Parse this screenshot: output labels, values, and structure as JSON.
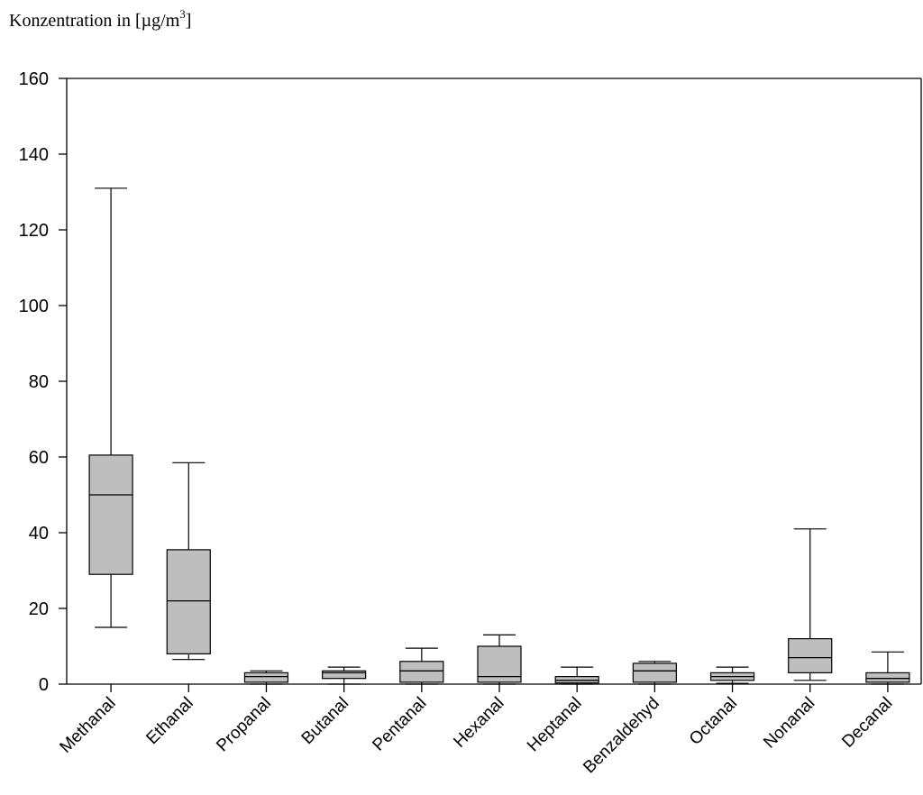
{
  "chart_data": {
    "type": "box",
    "ylabel": {
      "prefix": "Konzentration in [µg/m",
      "superscript": "3",
      "suffix": "]"
    },
    "ylim": [
      0,
      160
    ],
    "yticks": [
      0,
      20,
      40,
      60,
      80,
      100,
      120,
      140,
      160
    ],
    "grid": false,
    "colors": {
      "box_fill": "#bebebe",
      "stroke": "#000000"
    },
    "categories": [
      "Methanal",
      "Ethanal",
      "Propanal",
      "Butanal",
      "Pentanal",
      "Hexanal",
      "Heptanal",
      "Benzaldehyd",
      "Octanal",
      "Nonanal",
      "Decanal"
    ],
    "boxes": [
      {
        "whisker_low": 15,
        "q1": 29,
        "median": 50,
        "q3": 60.5,
        "whisker_high": 131
      },
      {
        "whisker_low": 6.5,
        "q1": 8,
        "median": 22,
        "q3": 35.5,
        "whisker_high": 58.5
      },
      {
        "whisker_low": 0,
        "q1": 0.5,
        "median": 2,
        "q3": 3,
        "whisker_high": 3.5
      },
      {
        "whisker_low": 0,
        "q1": 1.5,
        "median": 3,
        "q3": 3.5,
        "whisker_high": 4.5
      },
      {
        "whisker_low": 0,
        "q1": 0.5,
        "median": 3.5,
        "q3": 6,
        "whisker_high": 9.5
      },
      {
        "whisker_low": 0,
        "q1": 0.5,
        "median": 2,
        "q3": 10,
        "whisker_high": 13
      },
      {
        "whisker_low": 0,
        "q1": 0.3,
        "median": 1,
        "q3": 2,
        "whisker_high": 4.5
      },
      {
        "whisker_low": 0,
        "q1": 0.5,
        "median": 3.5,
        "q3": 5.5,
        "whisker_high": 6
      },
      {
        "whisker_low": 0.2,
        "q1": 1,
        "median": 2,
        "q3": 3,
        "whisker_high": 4.5
      },
      {
        "whisker_low": 1,
        "q1": 3,
        "median": 7,
        "q3": 12,
        "whisker_high": 41
      },
      {
        "whisker_low": 0,
        "q1": 0.5,
        "median": 1.5,
        "q3": 3,
        "whisker_high": 8.5
      }
    ]
  }
}
